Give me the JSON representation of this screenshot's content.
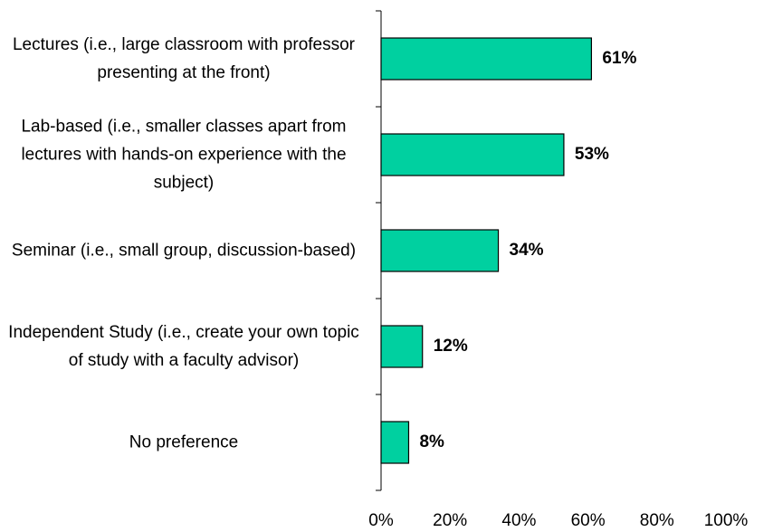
{
  "chart_data": {
    "type": "bar",
    "orientation": "horizontal",
    "categories": [
      "Lectures (i.e., large classroom with professor presenting at the front)",
      "Lab-based (i.e., smaller classes apart from lectures with hands-on experience with the subject)",
      "Seminar (i.e., small group, discussion-based)",
      "Independent Study (i.e., create your own topic of study with a faculty advisor)",
      "No preference"
    ],
    "values": [
      61,
      53,
      34,
      12,
      8
    ],
    "value_labels": [
      "61%",
      "53%",
      "34%",
      "12%",
      "8%"
    ],
    "color": "#00d0a0",
    "xlim": [
      0,
      100
    ],
    "xticks": [
      {
        "value": 0,
        "label": "0%"
      },
      {
        "value": 20,
        "label": "20%"
      },
      {
        "value": 40,
        "label": "40%"
      },
      {
        "value": 60,
        "label": "60%"
      },
      {
        "value": 80,
        "label": "80%"
      },
      {
        "value": 100,
        "label": "100%"
      }
    ],
    "grid": false
  }
}
